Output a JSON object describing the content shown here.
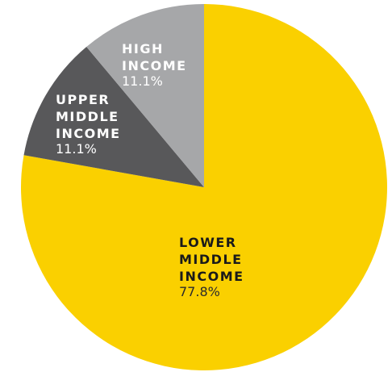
{
  "chart_data": {
    "type": "pie",
    "title": "",
    "slices": [
      {
        "label_lines": [
          "LOWER",
          "MIDDLE",
          "INCOME"
        ],
        "percent_text": "77.8%",
        "value": 77.8,
        "color": "#FAD000",
        "label_color": "#1a1a1a",
        "pct_color": "#2b2b2b"
      },
      {
        "label_lines": [
          "UPPER",
          "MIDDLE",
          "INCOME"
        ],
        "percent_text": "11.1%",
        "value": 11.1,
        "color": "#58585A",
        "label_color": "#ffffff",
        "pct_color": "#ffffff"
      },
      {
        "label_lines": [
          "HIGH",
          "INCOME"
        ],
        "percent_text": "11.1%",
        "value": 11.1,
        "color": "#A6A7A9",
        "label_color": "#ffffff",
        "pct_color": "#ffffff"
      }
    ]
  }
}
